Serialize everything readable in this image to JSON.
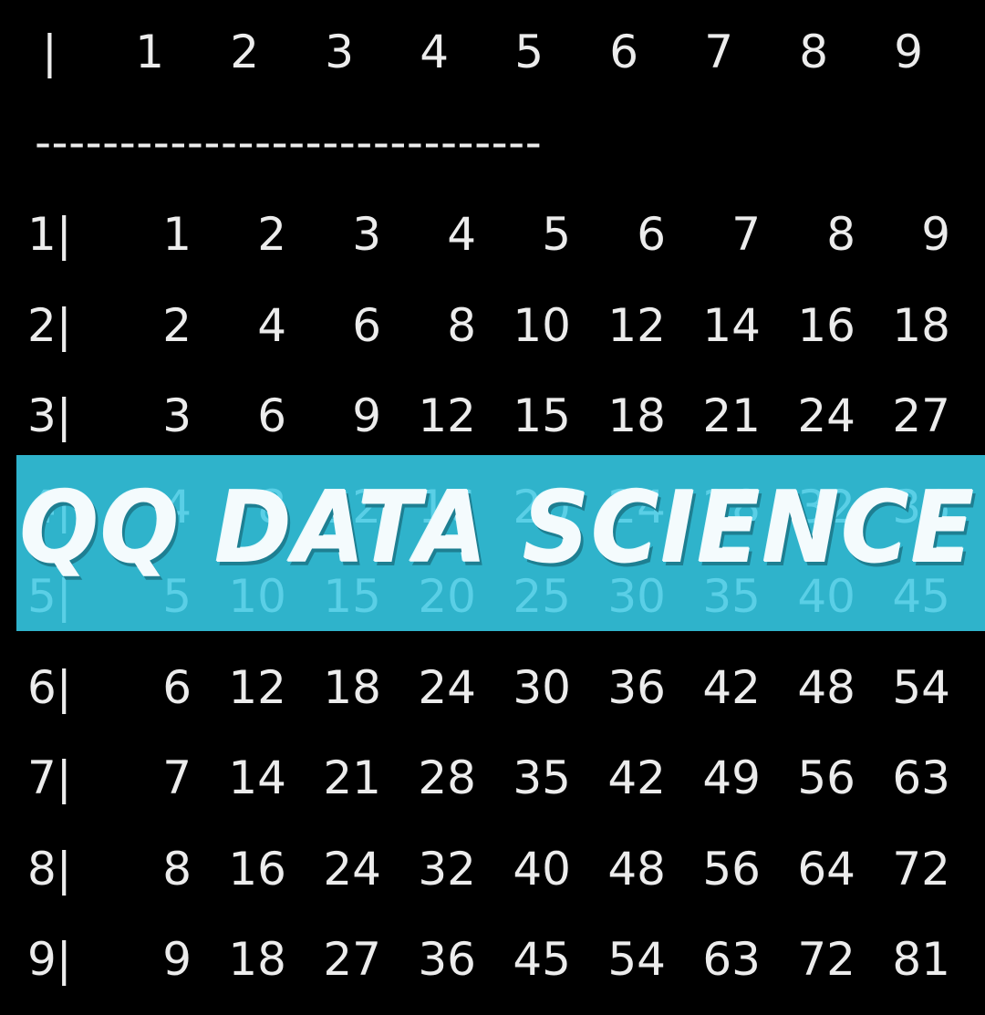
{
  "header_row": {
    "label": "|",
    "columns": [
      "1",
      "2",
      "3",
      "4",
      "5",
      "6",
      "7",
      "8",
      "9"
    ]
  },
  "divider": "------------------------------",
  "rows": [
    {
      "label": "1|",
      "values": [
        "1",
        "2",
        "3",
        "4",
        "5",
        "6",
        "7",
        "8",
        "9"
      ]
    },
    {
      "label": "2|",
      "values": [
        "2",
        "4",
        "6",
        "8",
        "10",
        "12",
        "14",
        "16",
        "18"
      ]
    },
    {
      "label": "3|",
      "values": [
        "3",
        "6",
        "9",
        "12",
        "15",
        "18",
        "21",
        "24",
        "27"
      ]
    },
    {
      "label": "4|",
      "values": [
        "4",
        "8",
        "12",
        "16",
        "20",
        "24",
        "28",
        "32",
        "36"
      ]
    },
    {
      "label": "5|",
      "values": [
        "5",
        "10",
        "15",
        "20",
        "25",
        "30",
        "35",
        "40",
        "45"
      ]
    },
    {
      "label": "6|",
      "values": [
        "6",
        "12",
        "18",
        "24",
        "30",
        "36",
        "42",
        "48",
        "54"
      ]
    },
    {
      "label": "7|",
      "values": [
        "7",
        "14",
        "21",
        "28",
        "35",
        "42",
        "49",
        "56",
        "63"
      ]
    },
    {
      "label": "8|",
      "values": [
        "8",
        "16",
        "24",
        "32",
        "40",
        "48",
        "56",
        "64",
        "72"
      ]
    },
    {
      "label": "9|",
      "values": [
        "9",
        "18",
        "27",
        "36",
        "45",
        "54",
        "63",
        "72",
        "81"
      ]
    }
  ],
  "banner": {
    "title": "QQ DATA SCIENCE",
    "background_color": "#2fb3cb",
    "text_color": "#f4fbfd"
  },
  "colors": {
    "background": "#000000",
    "text": "#ececec"
  }
}
